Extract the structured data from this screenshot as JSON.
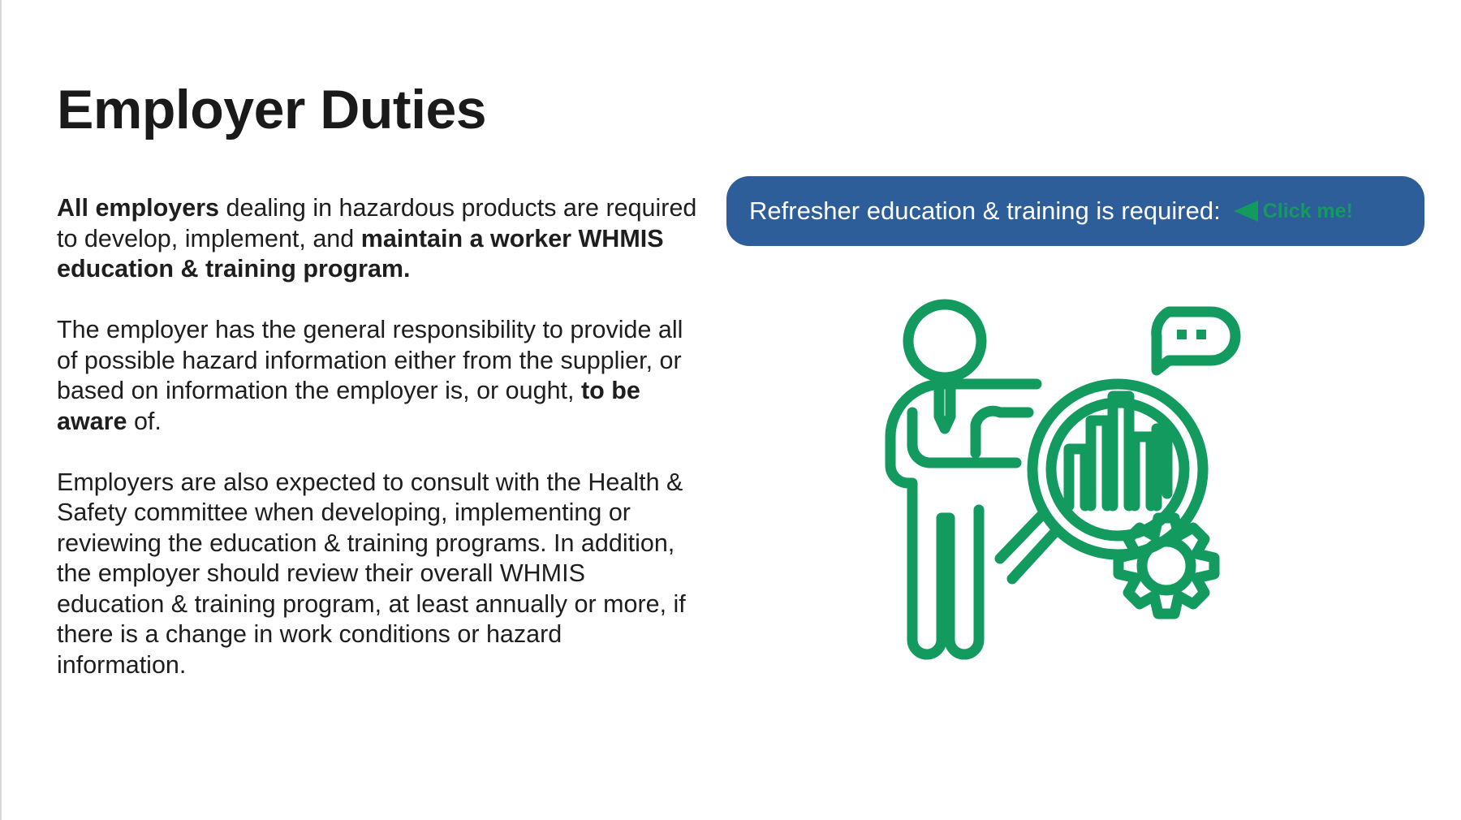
{
  "slide": {
    "title": "Employer Duties",
    "paragraphs": [
      {
        "segments": [
          {
            "text": "All employers",
            "bold": true
          },
          {
            "text": " dealing in hazardous products are required to develop, implement, and ",
            "bold": false
          },
          {
            "text": "maintain a worker WHMIS education & training program.",
            "bold": true
          }
        ]
      },
      {
        "segments": [
          {
            "text": "The employer has the general responsibility to provide all of possible hazard information either from the supplier, or based on information the employer is, or ought, ",
            "bold": false
          },
          {
            "text": "to be aware",
            "bold": true
          },
          {
            "text": " of.",
            "bold": false
          }
        ]
      },
      {
        "segments": [
          {
            "text": "Employers are also expected to consult with the Health & Safety committee when developing, implementing or reviewing the education & training programs. In addition, the employer should review their overall WHMIS education & training program, at least annually or more, if there is a change in work conditions or hazard information.",
            "bold": false
          }
        ]
      }
    ],
    "callout": {
      "text": "Refresher education & training is required:",
      "link_label": "Click me!",
      "link_icon": "left-arrow-icon"
    },
    "illustration": {
      "icon": "presenter-magnifier-chart-gear-icon"
    }
  },
  "colors": {
    "callout_bg": "#2e5e99",
    "accent_green": "#139a5e",
    "title": "#1a1a1a",
    "body_text": "#1e1e1e"
  }
}
